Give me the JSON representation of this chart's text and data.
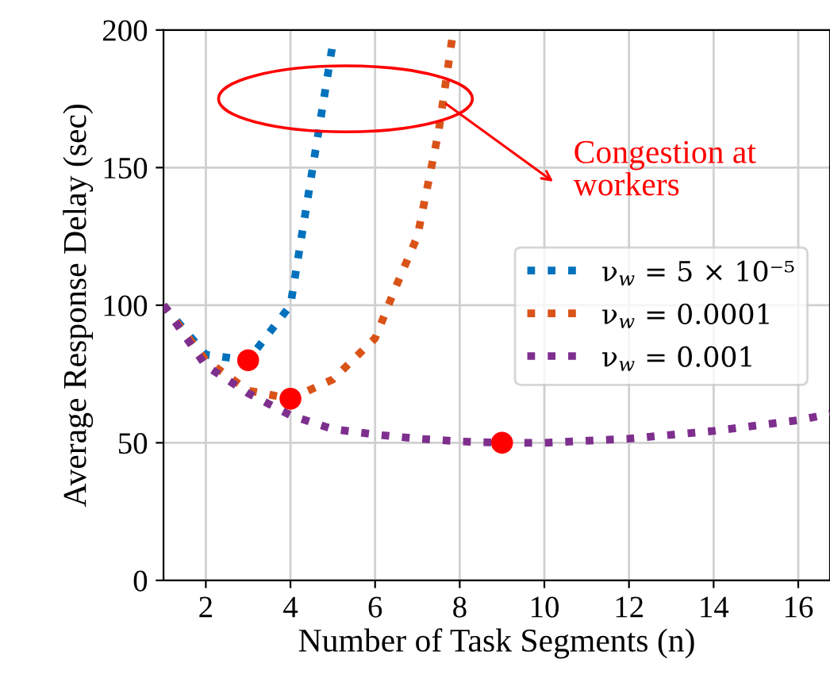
{
  "chart_data": {
    "type": "line",
    "xlabel": "Number of Task Segments (n)",
    "ylabel": "Average Response Delay (sec)",
    "xlim": [
      1,
      16.75
    ],
    "xticks": [
      2,
      4,
      6,
      8,
      10,
      12,
      14,
      16
    ],
    "ylim": [
      0,
      200
    ],
    "yticks": [
      0,
      50,
      100,
      150,
      200
    ],
    "grid": true,
    "legend": "center right",
    "line_style": "dotted",
    "marker": "none",
    "series": [
      {
        "name": "ν$_{w}$ = 5 × 10⁻⁵",
        "color": "#0072bd",
        "x": [
          1,
          2,
          3,
          4,
          5
        ],
        "values": [
          100,
          82,
          80,
          100,
          195
        ]
      },
      {
        "name": "ν$_{w}$ = 0.0001",
        "color": "#d95319",
        "x": [
          1,
          2,
          3,
          4,
          5,
          6,
          6.5,
          7,
          7.5,
          7.85
        ],
        "values": [
          100,
          80,
          69,
          66,
          73,
          88,
          107,
          125,
          163,
          200
        ]
      },
      {
        "name": "ν$_{w}$ = 0.001",
        "color": "#7e2f8e",
        "x": [
          1,
          2,
          3,
          4,
          5,
          6,
          7,
          8,
          9,
          10,
          12,
          14,
          16,
          16.75
        ],
        "values": [
          100,
          78,
          68,
          60,
          55,
          53,
          51.5,
          50.5,
          50,
          50,
          51.5,
          54.3,
          58.2,
          60.5
        ]
      },
      {
        "type": "scatter",
        "color": "#ff0000",
        "marker": "circle",
        "x": [
          3,
          4,
          9
        ],
        "values": [
          80,
          66,
          50
        ]
      }
    ],
    "annotations": [
      {
        "text": "Congestion at\nworkers",
        "x": 7.6,
        "y": 174
      }
    ]
  }
}
